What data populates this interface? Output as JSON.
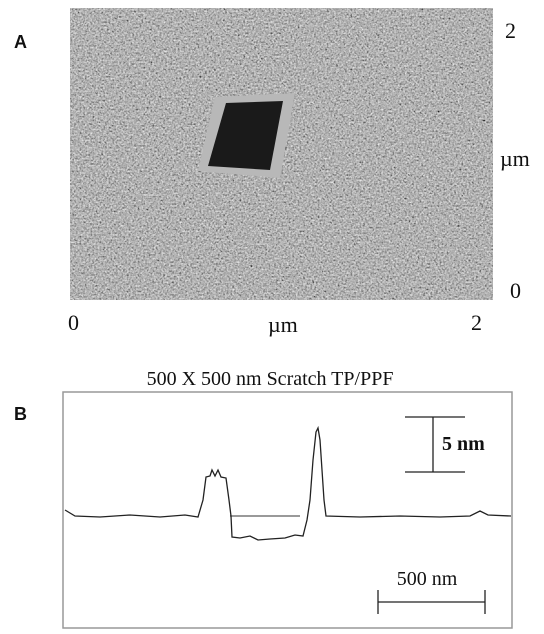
{
  "panel_a": {
    "label": "A",
    "right_axis": {
      "top": "2",
      "unit": "µm",
      "bottom": "0"
    },
    "bottom_axis": {
      "left": "0",
      "unit": "µm",
      "right": "2"
    }
  },
  "panel_b": {
    "label": "B",
    "title": "500 X 500 nm Scratch TP/PPF",
    "vertical_scale": "5 nm",
    "horizontal_scale": "500 nm"
  }
}
